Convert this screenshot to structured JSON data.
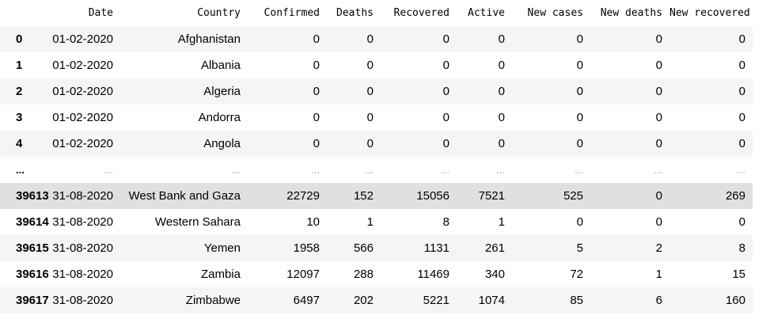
{
  "columns": [
    "",
    "Date",
    "Country",
    "Confirmed",
    "Deaths",
    "Recovered",
    "Active",
    "New cases",
    "New deaths",
    "New recovered"
  ],
  "rows": [
    {
      "index": "0",
      "cells": [
        "01-02-2020",
        "Afghanistan",
        "0",
        "0",
        "0",
        "0",
        "0",
        "0",
        "0"
      ]
    },
    {
      "index": "1",
      "cells": [
        "01-02-2020",
        "Albania",
        "0",
        "0",
        "0",
        "0",
        "0",
        "0",
        "0"
      ]
    },
    {
      "index": "2",
      "cells": [
        "01-02-2020",
        "Algeria",
        "0",
        "0",
        "0",
        "0",
        "0",
        "0",
        "0"
      ]
    },
    {
      "index": "3",
      "cells": [
        "01-02-2020",
        "Andorra",
        "0",
        "0",
        "0",
        "0",
        "0",
        "0",
        "0"
      ]
    },
    {
      "index": "4",
      "cells": [
        "01-02-2020",
        "Angola",
        "0",
        "0",
        "0",
        "0",
        "0",
        "0",
        "0"
      ]
    },
    {
      "index": "...",
      "cells": [
        "...",
        "...",
        "...",
        "...",
        "...",
        "...",
        "...",
        "...",
        "..."
      ]
    },
    {
      "index": "39613",
      "cells": [
        "31-08-2020",
        "West Bank and Gaza",
        "22729",
        "152",
        "15056",
        "7521",
        "525",
        "0",
        "269"
      ]
    },
    {
      "index": "39614",
      "cells": [
        "31-08-2020",
        "Western Sahara",
        "10",
        "1",
        "8",
        "1",
        "0",
        "0",
        "0"
      ]
    },
    {
      "index": "39615",
      "cells": [
        "31-08-2020",
        "Yemen",
        "1958",
        "566",
        "1131",
        "261",
        "5",
        "2",
        "8"
      ]
    },
    {
      "index": "39616",
      "cells": [
        "31-08-2020",
        "Zambia",
        "12097",
        "288",
        "11469",
        "340",
        "72",
        "1",
        "15"
      ]
    },
    {
      "index": "39617",
      "cells": [
        "31-08-2020",
        "Zimbabwe",
        "6497",
        "202",
        "5221",
        "1074",
        "85",
        "6",
        "160"
      ]
    }
  ]
}
